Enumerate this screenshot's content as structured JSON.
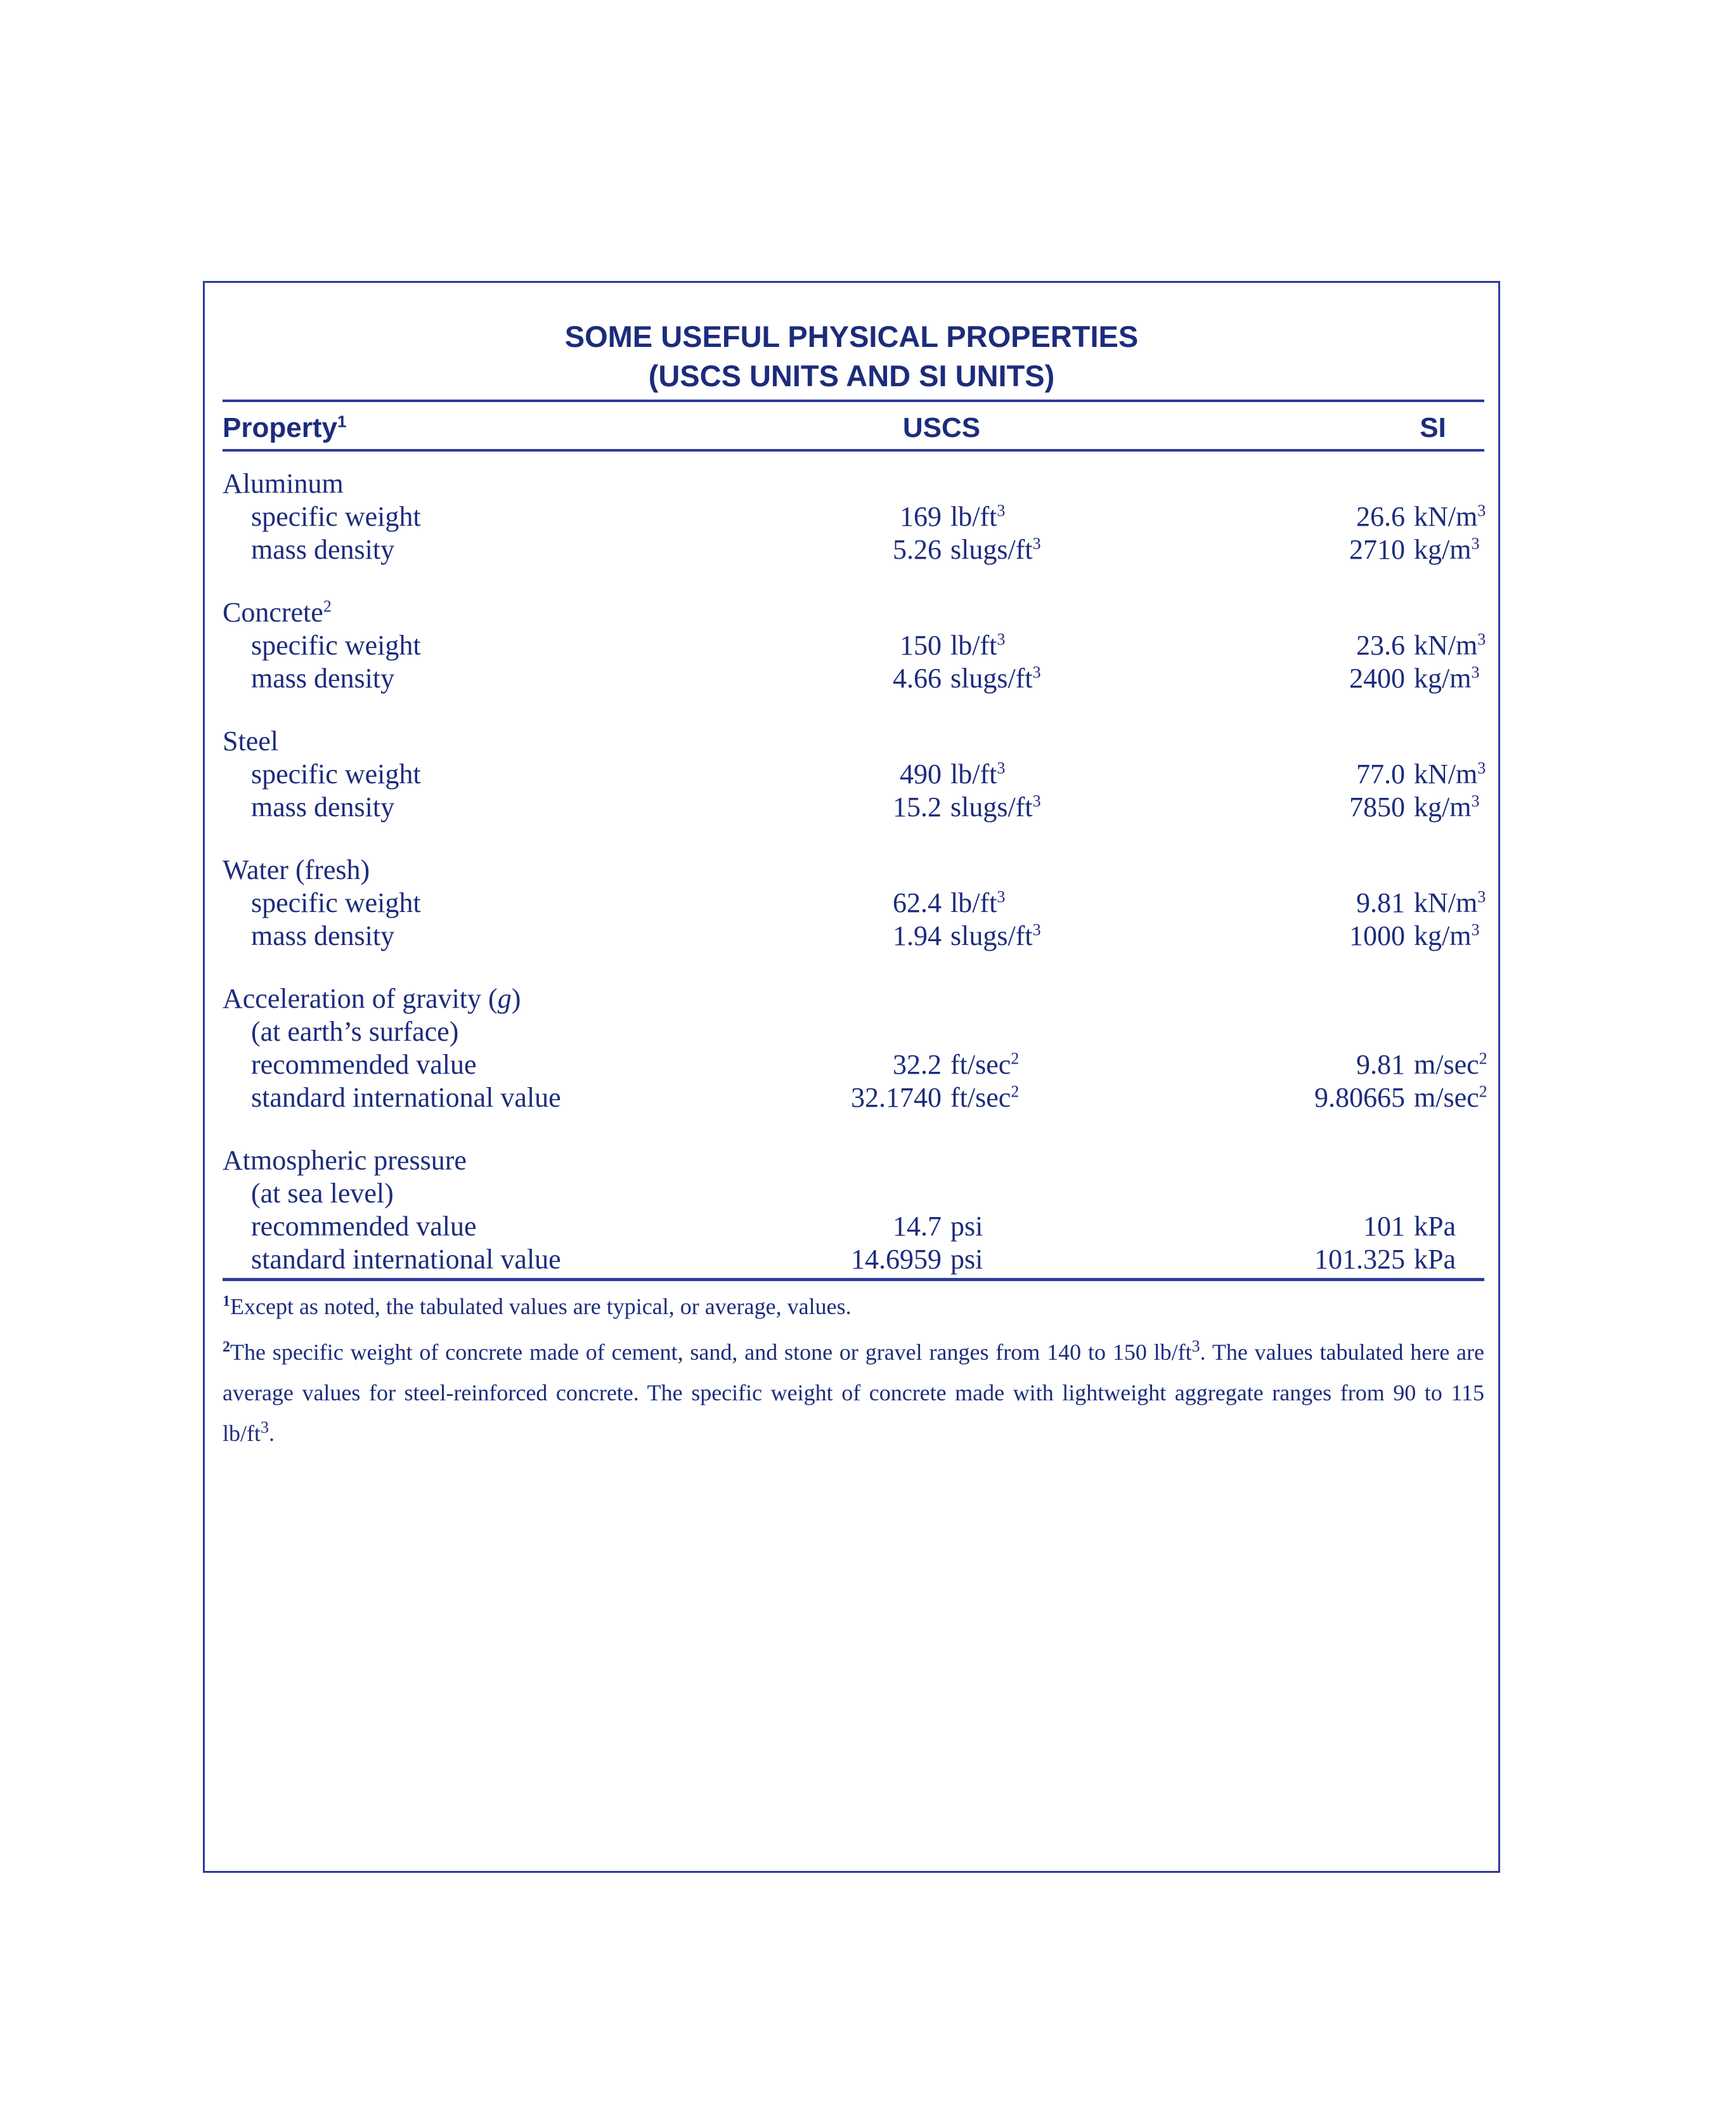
{
  "colors": {
    "ink": "#1c2c7c",
    "line": "#2c3b9e",
    "background": "#ffffff"
  },
  "title": {
    "line1": "SOME USEFUL PHYSICAL PROPERTIES",
    "line2": "(USCS UNITS AND SI UNITS)"
  },
  "header": {
    "property": "Property",
    "property_sup": "1",
    "uscs": "USCS",
    "si": "SI"
  },
  "groups": [
    {
      "name": "Aluminum",
      "name_italic": "",
      "name_after": "",
      "name_sup": "",
      "subnote": "",
      "rows": [
        {
          "label": "specific weight",
          "uscs_num": "169",
          "uscs_unit": "lb/ft",
          "uscs_sup": "3",
          "si_num": "26.6",
          "si_unit": "kN/m",
          "si_sup": "3"
        },
        {
          "label": "mass density",
          "uscs_num": "5.26",
          "uscs_unit": "slugs/ft",
          "uscs_sup": "3",
          "si_num": "2710",
          "si_unit": "kg/m",
          "si_sup": "3"
        }
      ]
    },
    {
      "name": "Concrete",
      "name_italic": "",
      "name_after": "",
      "name_sup": "2",
      "subnote": "",
      "rows": [
        {
          "label": "specific weight",
          "uscs_num": "150",
          "uscs_unit": "lb/ft",
          "uscs_sup": "3",
          "si_num": "23.6",
          "si_unit": "kN/m",
          "si_sup": "3"
        },
        {
          "label": "mass density",
          "uscs_num": "4.66",
          "uscs_unit": "slugs/ft",
          "uscs_sup": "3",
          "si_num": "2400",
          "si_unit": "kg/m",
          "si_sup": "3"
        }
      ]
    },
    {
      "name": "Steel",
      "name_italic": "",
      "name_after": "",
      "name_sup": "",
      "subnote": "",
      "rows": [
        {
          "label": "specific weight",
          "uscs_num": "490",
          "uscs_unit": "lb/ft",
          "uscs_sup": "3",
          "si_num": "77.0",
          "si_unit": "kN/m",
          "si_sup": "3"
        },
        {
          "label": "mass density",
          "uscs_num": "15.2",
          "uscs_unit": "slugs/ft",
          "uscs_sup": "3",
          "si_num": "7850",
          "si_unit": "kg/m",
          "si_sup": "3"
        }
      ]
    },
    {
      "name": "Water (fresh)",
      "name_italic": "",
      "name_after": "",
      "name_sup": "",
      "subnote": "",
      "rows": [
        {
          "label": "specific weight",
          "uscs_num": "62.4",
          "uscs_unit": "lb/ft",
          "uscs_sup": "3",
          "si_num": "9.81",
          "si_unit": "kN/m",
          "si_sup": "3"
        },
        {
          "label": "mass density",
          "uscs_num": "1.94",
          "uscs_unit": "slugs/ft",
          "uscs_sup": "3",
          "si_num": "1000",
          "si_unit": "kg/m",
          "si_sup": "3"
        }
      ]
    },
    {
      "name": "Acceleration of gravity (",
      "name_italic": "g",
      "name_after": ")",
      "name_sup": "",
      "subnote": "(at earth’s surface)",
      "rows": [
        {
          "label": "recommended value",
          "uscs_num": "32.2",
          "uscs_unit": "ft/sec",
          "uscs_sup": "2",
          "si_num": "9.81",
          "si_unit": "m/sec",
          "si_sup": "2"
        },
        {
          "label": "standard international value",
          "uscs_num": "32.1740",
          "uscs_unit": "ft/sec",
          "uscs_sup": "2",
          "si_num": "9.80665",
          "si_unit": "m/sec",
          "si_sup": "2"
        }
      ]
    },
    {
      "name": "Atmospheric pressure",
      "name_italic": "",
      "name_after": "",
      "name_sup": "",
      "subnote": "(at sea level)",
      "rows": [
        {
          "label": "recommended value",
          "uscs_num": "14.7",
          "uscs_unit": "psi",
          "uscs_sup": "",
          "si_num": "101",
          "si_unit": "kPa",
          "si_sup": ""
        },
        {
          "label": "standard international value",
          "uscs_num": "14.6959",
          "uscs_unit": "psi",
          "uscs_sup": "",
          "si_num": "101.325",
          "si_unit": "kPa",
          "si_sup": ""
        }
      ]
    }
  ],
  "footnotes": [
    {
      "marker": "1",
      "segments": [
        "Except as noted, the tabulated values are typical, or average, values."
      ]
    },
    {
      "marker": "2",
      "segments": [
        "The specific weight of concrete made of cement, sand, and stone or gravel ranges from 140 to 150 lb/ft",
        "3",
        ". The values tabulated here are average values for steel-reinforced concrete. The specific weight of concrete made with lightweight aggregate ranges from 90 to 115 lb/ft",
        "3",
        "."
      ]
    }
  ]
}
